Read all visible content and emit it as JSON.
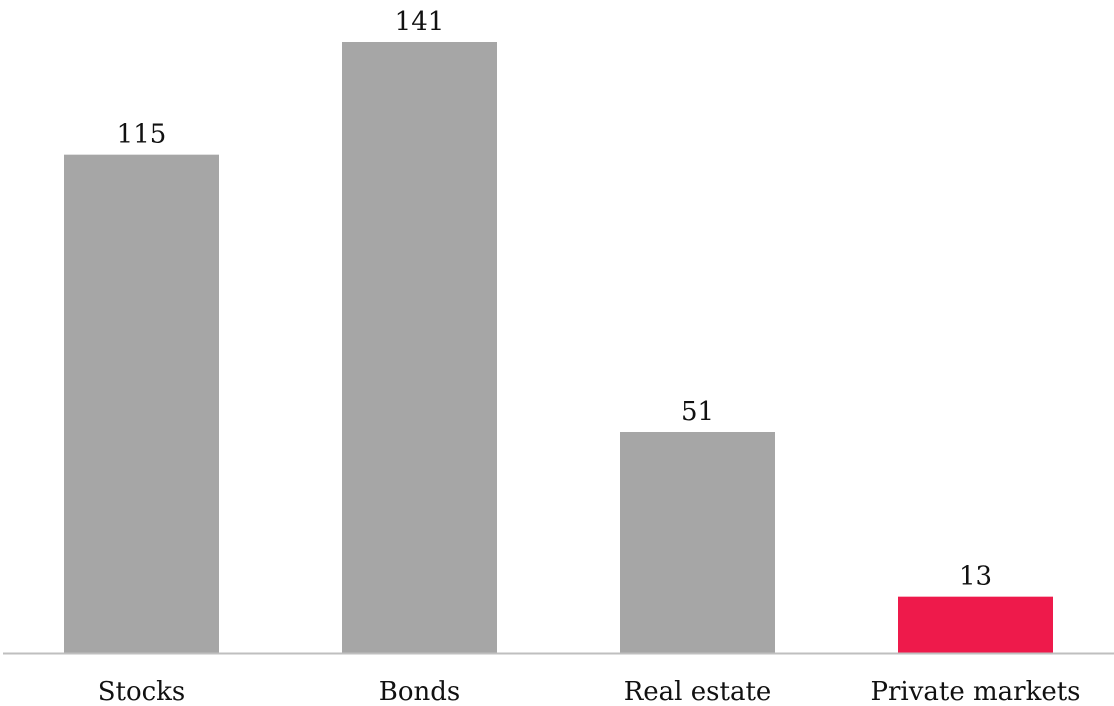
{
  "chart_data": {
    "type": "bar",
    "categories": [
      "Stocks",
      "Bonds",
      "Real estate",
      "Private markets"
    ],
    "values": [
      115,
      141,
      51,
      13
    ],
    "data_labels": [
      "115",
      "141",
      "51",
      "13"
    ],
    "title": "",
    "xlabel": "",
    "ylabel": "",
    "ylim": [
      0,
      141
    ],
    "grid": false,
    "legend": "none",
    "colors": [
      "#a6a6a6",
      "#a6a6a6",
      "#a6a6a6",
      "#ee1a4b"
    ],
    "axis_color": "#bfbfbf"
  }
}
